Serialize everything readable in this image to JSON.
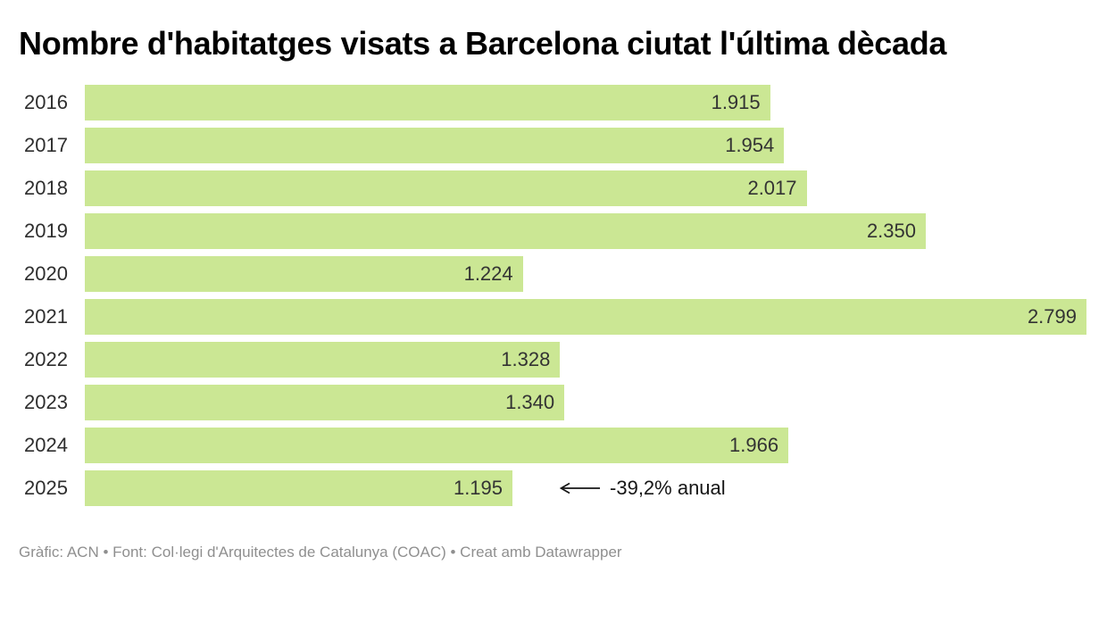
{
  "title": "Nombre d'habitatges visats a Barcelona ciutat l'última dècada",
  "footer": "Gràfic: ACN • Font: Col·legi d'Arquitectes de Catalunya (COAC) • Creat amb Datawrapper",
  "colors": {
    "bar": "#cbe794",
    "title": "#000000",
    "category_label": "#2e2e2e",
    "value_label": "#333333",
    "annotation": "#161616",
    "footer": "#8f8f8f"
  },
  "chart_data": {
    "type": "bar",
    "orientation": "horizontal",
    "title": "Nombre d'habitatges visats a Barcelona ciutat l'última dècada",
    "categories": [
      "2016",
      "2017",
      "2018",
      "2019",
      "2020",
      "2021",
      "2022",
      "2023",
      "2024",
      "2025"
    ],
    "values": [
      1915,
      1954,
      2017,
      2350,
      1224,
      2799,
      1328,
      1340,
      1966,
      1195
    ],
    "value_labels": [
      "1.915",
      "1.954",
      "2.017",
      "2.350",
      "1.224",
      "2.799",
      "1.328",
      "1.340",
      "1.966",
      "1.195"
    ],
    "xlim": [
      0,
      2799
    ],
    "grid": false,
    "legend": false,
    "value_label_position": "inside-end",
    "annotations": [
      {
        "category": "2025",
        "arrow": "left",
        "text": "-39,2% anual"
      }
    ]
  }
}
